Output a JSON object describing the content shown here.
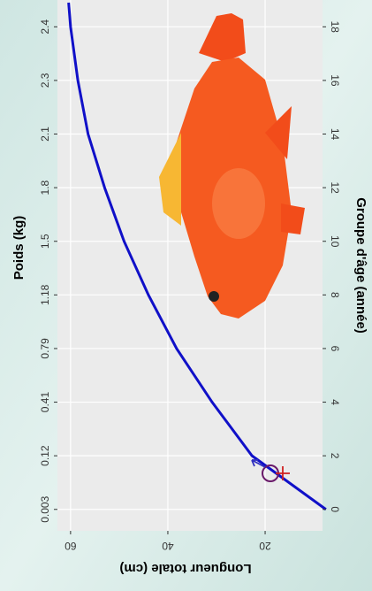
{
  "chart_data": {
    "type": "line",
    "x_label": "Groupe d'âge (année)",
    "y_label": "Longueur totale (cm)",
    "x2_label": "Poids (kg)",
    "x": [
      0,
      2,
      4,
      6,
      8,
      10,
      12,
      14,
      16,
      18,
      18.9
    ],
    "series": [
      {
        "name": "Longueur",
        "color": "#1010c8",
        "values": [
          7.5,
          22.7,
          30.9,
          38.2,
          44,
          49,
          53,
          56.4,
          58.5,
          60,
          60.4
        ]
      }
    ],
    "xlim": [
      -0.8,
      19
    ],
    "xticks": [
      0,
      2,
      4,
      6,
      8,
      10,
      12,
      14,
      16,
      18
    ],
    "x2ticks": [
      {
        "value": 0,
        "label": "0.003"
      },
      {
        "value": 2,
        "label": "0.12"
      },
      {
        "value": 4,
        "label": "0.41"
      },
      {
        "value": 6,
        "label": "0.79"
      },
      {
        "value": 8,
        "label": "1.18"
      },
      {
        "value": 10,
        "label": "1.5"
      },
      {
        "value": 12,
        "label": "1.8"
      },
      {
        "value": 14,
        "label": "2.1"
      },
      {
        "value": 16,
        "label": "2.3"
      },
      {
        "value": 18,
        "label": "2.4"
      }
    ],
    "ylim": [
      8.2,
      62.7
    ],
    "yticks": [
      20,
      40,
      60
    ],
    "grid": true
  }
}
